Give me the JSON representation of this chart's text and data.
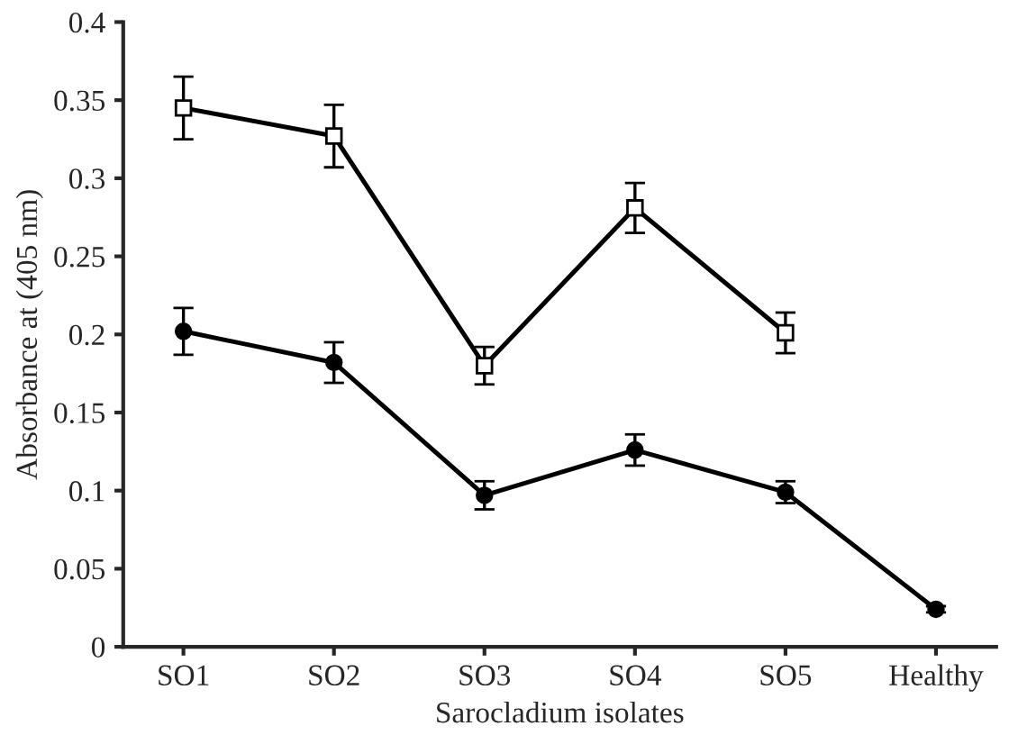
{
  "chart_data": {
    "type": "line",
    "xlabel": "Sarocladium isolates",
    "ylabel": "Absorbance at (405 nm)",
    "categories": [
      "SO1",
      "SO2",
      "SO3",
      "SO4",
      "SO5",
      "Healthy"
    ],
    "ylim": [
      0,
      0.4
    ],
    "yticks": [
      0,
      0.05,
      0.1,
      0.15,
      0.2,
      0.25,
      0.3,
      0.35,
      0.4
    ],
    "grid": false,
    "line_style": "solid",
    "series": [
      {
        "color": "#000000",
        "marker": "square",
        "values": [
          0.345,
          0.327,
          0.18,
          0.281,
          0.201,
          null
        ],
        "errors": [
          0.02,
          0.02,
          0.012,
          0.016,
          0.013,
          null
        ]
      },
      {
        "color": "#000000",
        "marker": "circle",
        "values": [
          0.202,
          0.182,
          0.097,
          0.126,
          0.099,
          0.024
        ],
        "errors": [
          0.015,
          0.013,
          0.009,
          0.01,
          0.007,
          0.002
        ]
      }
    ]
  }
}
